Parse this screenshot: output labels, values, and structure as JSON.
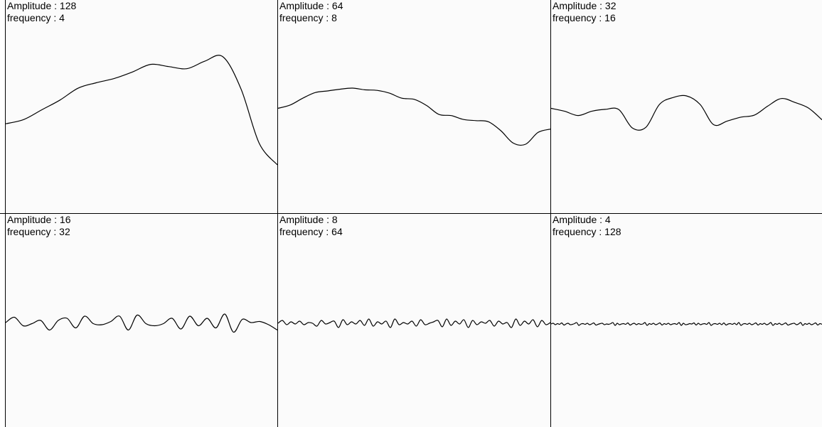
{
  "chart_data": [
    {
      "type": "line",
      "amplitude_label": "Amplitude : 128",
      "frequency_label": "frequency : 4",
      "amplitude": 128,
      "frequency": 4,
      "y": [
        0.62,
        0.58,
        0.49,
        0.4,
        0.29,
        0.24,
        0.2,
        0.14,
        0.07,
        0.09,
        0.11,
        0.04,
        0.0,
        0.3,
        0.8,
        1.0
      ]
    },
    {
      "type": "line",
      "amplitude_label": "Amplitude : 64",
      "frequency_label": "frequency : 8",
      "amplitude": 64,
      "frequency": 8,
      "y": [
        0.36,
        0.3,
        0.18,
        0.08,
        0.05,
        0.02,
        0.0,
        0.03,
        0.04,
        0.09,
        0.18,
        0.2,
        0.31,
        0.47,
        0.49,
        0.56,
        0.58,
        0.6,
        0.76,
        0.98,
        1.0,
        0.79,
        0.73
      ]
    },
    {
      "type": "line",
      "amplitude_label": "Amplitude : 32",
      "frequency_label": "frequency : 16",
      "amplitude": 32,
      "frequency": 16,
      "y": [
        0.38,
        0.47,
        0.6,
        0.47,
        0.41,
        0.42,
        0.98,
        0.96,
        0.26,
        0.05,
        0.0,
        0.26,
        0.88,
        0.77,
        0.65,
        0.59,
        0.31,
        0.08,
        0.2,
        0.37,
        0.73
      ]
    },
    {
      "type": "line",
      "amplitude_label": "Amplitude : 16",
      "frequency_label": "frequency : 32",
      "amplitude": 16,
      "frequency": 32,
      "y": [
        0.5,
        0.25,
        0.65,
        0.55,
        0.4,
        0.85,
        0.4,
        0.3,
        0.75,
        0.2,
        0.55,
        0.6,
        0.45,
        0.2,
        0.85,
        0.15,
        0.55,
        0.65,
        0.55,
        0.3,
        0.8,
        0.2,
        0.65,
        0.3,
        0.75,
        0.1,
        0.95,
        0.35,
        0.5,
        0.45,
        0.6,
        0.85
      ]
    },
    {
      "type": "line",
      "amplitude_label": "Amplitude : 8",
      "frequency_label": "frequency : 64",
      "amplitude": 8,
      "frequency": 64,
      "y": [
        0.5,
        0.3,
        0.6,
        0.4,
        0.55,
        0.35,
        0.6,
        0.45,
        0.5,
        0.7,
        0.3,
        0.55,
        0.45,
        0.35,
        0.8,
        0.25,
        0.6,
        0.4,
        0.55,
        0.3,
        0.65,
        0.2,
        0.7,
        0.4,
        0.55,
        0.35,
        0.8,
        0.2,
        0.6,
        0.45,
        0.55,
        0.35,
        0.7,
        0.25,
        0.6,
        0.5,
        0.4,
        0.3,
        0.75,
        0.2,
        0.65,
        0.35,
        0.55,
        0.25,
        0.8,
        0.3,
        0.6,
        0.4,
        0.5,
        0.3,
        0.7,
        0.35,
        0.55,
        0.45,
        0.8,
        0.2,
        0.65,
        0.35,
        0.55,
        0.25,
        0.75,
        0.3,
        0.6,
        0.45
      ]
    },
    {
      "type": "line",
      "amplitude_label": "Amplitude : 4",
      "frequency_label": "frequency : 128",
      "amplitude": 4,
      "frequency": 128,
      "y": [
        0.5,
        0.4,
        0.6,
        0.45,
        0.55,
        0.35,
        0.65,
        0.5,
        0.4,
        0.6,
        0.55,
        0.45,
        0.3,
        0.7,
        0.5,
        0.45,
        0.55,
        0.4,
        0.6,
        0.5,
        0.35,
        0.65,
        0.55,
        0.45,
        0.4,
        0.6,
        0.5,
        0.55,
        0.45,
        0.3,
        0.7,
        0.4,
        0.6,
        0.5,
        0.45,
        0.55,
        0.35,
        0.65,
        0.5,
        0.4,
        0.6,
        0.45,
        0.55,
        0.5,
        0.3,
        0.7,
        0.45,
        0.55,
        0.4,
        0.6,
        0.5,
        0.35,
        0.65,
        0.45,
        0.55,
        0.4,
        0.6,
        0.5,
        0.45,
        0.55,
        0.3,
        0.7,
        0.4,
        0.6,
        0.55,
        0.45,
        0.5,
        0.35,
        0.65,
        0.4,
        0.6,
        0.5,
        0.45,
        0.55,
        0.3,
        0.7,
        0.5,
        0.45,
        0.55,
        0.4,
        0.6,
        0.35,
        0.65,
        0.5,
        0.45,
        0.55,
        0.4,
        0.6,
        0.3,
        0.7,
        0.5,
        0.45,
        0.55,
        0.4,
        0.6,
        0.5,
        0.35,
        0.65,
        0.45,
        0.55,
        0.4,
        0.6,
        0.5,
        0.3,
        0.7,
        0.45,
        0.55,
        0.4,
        0.6,
        0.5,
        0.35,
        0.65,
        0.55,
        0.45,
        0.4,
        0.6,
        0.5,
        0.3,
        0.7,
        0.45,
        0.55,
        0.4,
        0.6,
        0.5,
        0.35,
        0.65,
        0.45,
        0.55
      ]
    }
  ]
}
